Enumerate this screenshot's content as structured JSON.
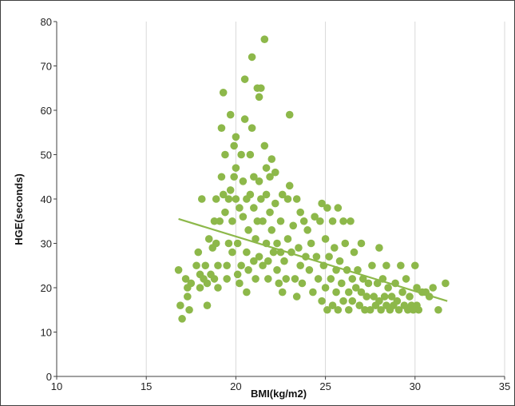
{
  "chart_data": {
    "type": "scatter",
    "title": "",
    "xlabel": "BMI(kg/m2)",
    "ylabel": "HGE(seconds)",
    "xlim": [
      10,
      35
    ],
    "ylim": [
      0,
      80
    ],
    "x_ticks": [
      10,
      15,
      20,
      25,
      30,
      35
    ],
    "y_ticks": [
      0,
      10,
      20,
      30,
      40,
      50,
      60,
      70,
      80
    ],
    "grid": "vertical",
    "legend": "none",
    "colors": {
      "marker": "#8db84a",
      "trendline": "#8db84a",
      "gridline": "#d9d9d9",
      "axis": "#404040"
    },
    "trendline": {
      "type": "linear",
      "x": [
        16.8,
        31.8
      ],
      "y": [
        35.5,
        17.0
      ]
    },
    "points": [
      [
        16.8,
        24
      ],
      [
        16.9,
        16
      ],
      [
        17.0,
        13
      ],
      [
        17.2,
        22
      ],
      [
        17.3,
        20
      ],
      [
        17.3,
        18
      ],
      [
        17.4,
        15
      ],
      [
        17.5,
        21
      ],
      [
        17.8,
        25
      ],
      [
        17.9,
        28
      ],
      [
        18.0,
        23
      ],
      [
        18.0,
        20
      ],
      [
        18.1,
        40
      ],
      [
        18.2,
        22
      ],
      [
        18.3,
        25
      ],
      [
        18.4,
        21
      ],
      [
        18.4,
        16
      ],
      [
        18.5,
        31
      ],
      [
        18.6,
        23
      ],
      [
        18.7,
        29
      ],
      [
        18.8,
        35
      ],
      [
        18.8,
        22
      ],
      [
        18.9,
        40
      ],
      [
        18.9,
        30
      ],
      [
        19.0,
        20
      ],
      [
        19.0,
        25
      ],
      [
        19.1,
        35
      ],
      [
        19.2,
        56
      ],
      [
        19.2,
        45
      ],
      [
        19.3,
        64
      ],
      [
        19.3,
        41
      ],
      [
        19.4,
        50
      ],
      [
        19.4,
        37
      ],
      [
        19.5,
        25
      ],
      [
        19.5,
        22
      ],
      [
        19.6,
        30
      ],
      [
        19.6,
        40
      ],
      [
        19.7,
        59
      ],
      [
        19.7,
        42
      ],
      [
        19.8,
        28
      ],
      [
        19.8,
        35
      ],
      [
        19.9,
        52
      ],
      [
        19.9,
        45
      ],
      [
        20.0,
        54
      ],
      [
        20.0,
        47
      ],
      [
        20.0,
        40
      ],
      [
        20.1,
        23
      ],
      [
        20.1,
        30
      ],
      [
        20.2,
        21
      ],
      [
        20.2,
        38
      ],
      [
        20.3,
        50
      ],
      [
        20.3,
        25
      ],
      [
        20.4,
        44
      ],
      [
        20.4,
        36
      ],
      [
        20.5,
        67
      ],
      [
        20.5,
        58
      ],
      [
        20.6,
        40
      ],
      [
        20.6,
        28
      ],
      [
        20.6,
        19
      ],
      [
        20.7,
        33
      ],
      [
        20.7,
        24
      ],
      [
        20.8,
        50
      ],
      [
        20.8,
        41
      ],
      [
        20.9,
        72
      ],
      [
        20.9,
        56
      ],
      [
        21.0,
        45
      ],
      [
        21.0,
        38
      ],
      [
        21.0,
        26
      ],
      [
        21.1,
        22
      ],
      [
        21.1,
        31
      ],
      [
        21.2,
        65
      ],
      [
        21.2,
        35
      ],
      [
        21.3,
        63
      ],
      [
        21.3,
        44
      ],
      [
        21.3,
        27
      ],
      [
        21.4,
        65
      ],
      [
        21.4,
        40
      ],
      [
        21.5,
        25
      ],
      [
        21.5,
        35
      ],
      [
        21.6,
        76
      ],
      [
        21.6,
        52
      ],
      [
        21.7,
        47
      ],
      [
        21.7,
        41
      ],
      [
        21.7,
        30
      ],
      [
        21.8,
        26
      ],
      [
        21.8,
        22
      ],
      [
        21.9,
        45
      ],
      [
        21.9,
        37
      ],
      [
        22.0,
        49
      ],
      [
        22.0,
        33
      ],
      [
        22.1,
        28
      ],
      [
        22.2,
        46
      ],
      [
        22.2,
        39
      ],
      [
        22.3,
        30
      ],
      [
        22.3,
        24
      ],
      [
        22.4,
        21
      ],
      [
        22.5,
        35
      ],
      [
        22.5,
        28
      ],
      [
        22.6,
        41
      ],
      [
        22.6,
        19
      ],
      [
        22.7,
        26
      ],
      [
        22.8,
        22
      ],
      [
        22.9,
        40
      ],
      [
        22.9,
        31
      ],
      [
        23.0,
        59
      ],
      [
        23.0,
        43
      ],
      [
        23.1,
        28
      ],
      [
        23.2,
        34
      ],
      [
        23.3,
        22
      ],
      [
        23.4,
        40
      ],
      [
        23.4,
        18
      ],
      [
        23.5,
        29
      ],
      [
        23.6,
        37
      ],
      [
        23.6,
        25
      ],
      [
        23.7,
        21
      ],
      [
        23.8,
        35
      ],
      [
        23.9,
        27
      ],
      [
        24.0,
        33
      ],
      [
        24.1,
        24
      ],
      [
        24.2,
        30
      ],
      [
        24.3,
        19
      ],
      [
        24.4,
        36
      ],
      [
        24.5,
        27
      ],
      [
        24.6,
        22
      ],
      [
        24.7,
        35
      ],
      [
        24.8,
        39
      ],
      [
        24.8,
        17
      ],
      [
        24.9,
        25
      ],
      [
        25.0,
        31
      ],
      [
        25.0,
        20
      ],
      [
        25.1,
        38
      ],
      [
        25.1,
        15
      ],
      [
        25.2,
        27
      ],
      [
        25.3,
        22
      ],
      [
        25.4,
        35
      ],
      [
        25.4,
        16
      ],
      [
        25.5,
        29
      ],
      [
        25.6,
        24
      ],
      [
        25.6,
        19
      ],
      [
        25.7,
        38
      ],
      [
        25.7,
        15
      ],
      [
        25.8,
        26
      ],
      [
        25.9,
        21
      ],
      [
        26.0,
        35
      ],
      [
        26.0,
        17
      ],
      [
        26.1,
        30
      ],
      [
        26.2,
        24
      ],
      [
        26.3,
        19
      ],
      [
        26.3,
        15
      ],
      [
        26.4,
        35
      ],
      [
        26.5,
        22
      ],
      [
        26.5,
        17
      ],
      [
        26.6,
        28
      ],
      [
        26.7,
        20
      ],
      [
        26.8,
        24
      ],
      [
        26.9,
        16
      ],
      [
        27.0,
        30
      ],
      [
        27.0,
        19
      ],
      [
        27.1,
        22
      ],
      [
        27.2,
        15
      ],
      [
        27.3,
        18
      ],
      [
        27.4,
        21
      ],
      [
        27.5,
        15
      ],
      [
        27.6,
        25
      ],
      [
        27.7,
        18
      ],
      [
        27.8,
        16
      ],
      [
        27.9,
        21
      ],
      [
        28.0,
        29
      ],
      [
        28.0,
        17
      ],
      [
        28.1,
        15
      ],
      [
        28.2,
        22
      ],
      [
        28.3,
        18
      ],
      [
        28.4,
        25
      ],
      [
        28.4,
        16
      ],
      [
        28.5,
        20
      ],
      [
        28.6,
        15
      ],
      [
        28.7,
        18
      ],
      [
        28.8,
        16
      ],
      [
        28.9,
        21
      ],
      [
        29.0,
        17
      ],
      [
        29.1,
        15
      ],
      [
        29.2,
        25
      ],
      [
        29.3,
        19
      ],
      [
        29.4,
        16
      ],
      [
        29.5,
        22
      ],
      [
        29.6,
        15
      ],
      [
        29.7,
        18
      ],
      [
        29.8,
        16
      ],
      [
        29.9,
        15
      ],
      [
        30.0,
        25
      ],
      [
        30.1,
        20
      ],
      [
        30.1,
        16
      ],
      [
        30.2,
        15
      ],
      [
        30.4,
        19
      ],
      [
        30.6,
        19
      ],
      [
        30.8,
        18
      ],
      [
        31.0,
        20
      ],
      [
        31.3,
        15
      ],
      [
        31.7,
        21
      ]
    ]
  }
}
